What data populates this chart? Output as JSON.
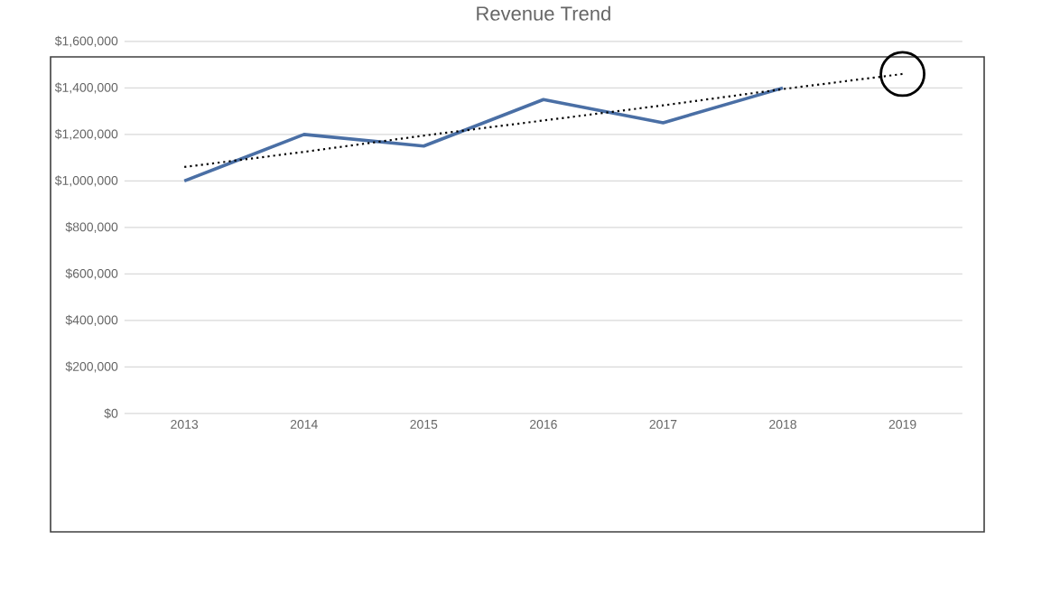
{
  "chart_data": {
    "type": "line",
    "title": "Revenue Trend",
    "categories": [
      "2013",
      "2014",
      "2015",
      "2016",
      "2017",
      "2018",
      "2019"
    ],
    "series": [
      {
        "color": "#4a6fa5",
        "line_style": "solid",
        "values": [
          1000000,
          1200000,
          1150000,
          1350000,
          1250000,
          1400000,
          null
        ]
      },
      {
        "color": "#000000",
        "line_style": "dotted",
        "values": [
          1060000,
          1125000,
          1195000,
          1260000,
          1325000,
          1395000,
          1460000
        ]
      }
    ],
    "ylim": [
      0,
      1600000
    ],
    "yticks": [
      {
        "value": 0,
        "label": "$0"
      },
      {
        "value": 200000,
        "label": "$200,000"
      },
      {
        "value": 400000,
        "label": "$400,000"
      },
      {
        "value": 600000,
        "label": "$600,000"
      },
      {
        "value": 800000,
        "label": "$800,000"
      },
      {
        "value": 1000000,
        "label": "$1,000,000"
      },
      {
        "value": 1200000,
        "label": "$1,200,000"
      },
      {
        "value": 1400000,
        "label": "$1,400,000"
      },
      {
        "value": 1600000,
        "label": "$1,600,000"
      }
    ],
    "grid": "y",
    "marker": "none"
  }
}
